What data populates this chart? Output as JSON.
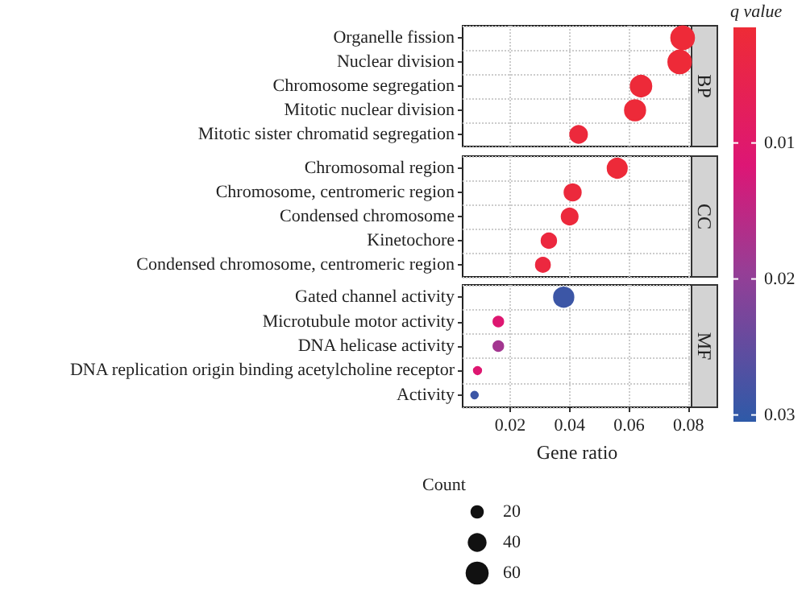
{
  "chart_data": {
    "type": "scatter",
    "orientation": "horizontal",
    "categories": [
      "Organelle fission",
      "Nuclear division",
      "Chromosome segregation",
      "Mitotic nuclear division",
      "Mitotic sister chromatid segregation",
      "Chromosomal region",
      "Chromosome, centromeric region",
      "Condensed chromosome",
      "Kinetochore",
      "Condensed chromosome, centromeric region",
      "Gated channel activity",
      "Microtubule motor activity",
      "DNA helicase activity",
      "DNA replication origin binding acetylcholine receptor",
      "Activity"
    ],
    "series": [
      {
        "name": "BP",
        "values": [
          0.078,
          0.077,
          0.064,
          0.062,
          0.043,
          null,
          null,
          null,
          null,
          null,
          null,
          null,
          null,
          null,
          null
        ],
        "cvalues": [
          0.0018,
          0.0018,
          0.002,
          0.002,
          0.0025,
          null,
          null,
          null,
          null,
          null,
          null,
          null,
          null,
          null,
          null
        ],
        "colors": [
          "#ee2a38",
          "#ee2a38",
          "#ed2a39",
          "#ed2a39",
          "#ec293c",
          null,
          null,
          null,
          null,
          null,
          null,
          null,
          null,
          null,
          null
        ],
        "sizes": [
          62,
          61,
          51,
          49,
          34,
          null,
          null,
          null,
          null,
          null,
          null,
          null,
          null,
          null,
          null
        ]
      },
      {
        "name": "CC",
        "values": [
          null,
          null,
          null,
          null,
          null,
          0.056,
          0.041,
          0.04,
          0.033,
          0.031,
          null,
          null,
          null,
          null,
          null
        ],
        "cvalues": [
          null,
          null,
          null,
          null,
          null,
          0.002,
          0.0025,
          0.0025,
          0.003,
          0.003,
          null,
          null,
          null,
          null,
          null
        ],
        "colors": [
          null,
          null,
          null,
          null,
          null,
          "#ed2a39",
          "#ec293c",
          "#ec293c",
          "#ec283f",
          "#ec283f",
          null,
          null,
          null,
          null,
          null
        ],
        "sizes": [
          null,
          null,
          null,
          null,
          null,
          44,
          32,
          31,
          26,
          24,
          null,
          null,
          null,
          null,
          null
        ]
      },
      {
        "name": "MF",
        "values": [
          null,
          null,
          null,
          null,
          null,
          null,
          null,
          null,
          null,
          null,
          0.038,
          0.016,
          0.016,
          0.009,
          0.008
        ],
        "cvalues": [
          null,
          null,
          null,
          null,
          null,
          null,
          null,
          null,
          null,
          null,
          0.029,
          0.011,
          0.018,
          0.011,
          0.029
        ],
        "colors": [
          null,
          null,
          null,
          null,
          null,
          null,
          null,
          null,
          null,
          null,
          "#3c56a6",
          "#de1771",
          "#a33690",
          "#de1771",
          "#3c56a6"
        ],
        "sizes": [
          null,
          null,
          null,
          null,
          null,
          null,
          null,
          null,
          null,
          null,
          45,
          12,
          12,
          7,
          6
        ]
      }
    ],
    "size_legend": [
      20,
      40,
      60
    ],
    "legend_title": "Count",
    "xlim": [
      0.004,
      0.081
    ],
    "xticks": [
      0.02,
      0.04,
      0.06,
      0.08
    ],
    "xlabel": "Gene ratio",
    "clim": [
      0.0015,
      0.0305
    ],
    "cticks": [
      0.01,
      0.02,
      0.03
    ],
    "clabel": "q value",
    "grid": true,
    "marker": "circle"
  }
}
